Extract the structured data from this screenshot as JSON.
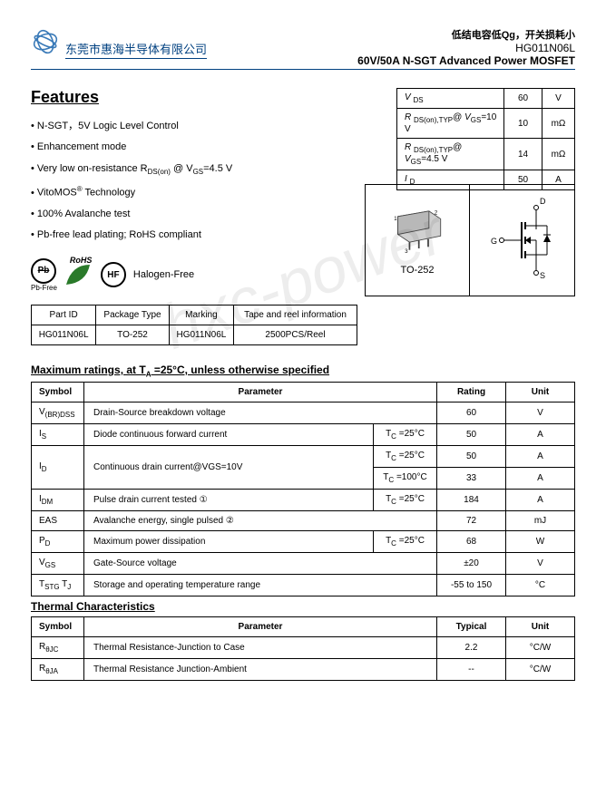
{
  "header": {
    "company": "东莞市惠海半导体有限公司",
    "tagline": "低结电容低Qg，开关损耗小",
    "part_no": "HG011N06L",
    "subtitle": "60V/50A N-SGT Advanced Power MOSFET"
  },
  "features": {
    "title": "Features",
    "items": [
      "N-SGT，5V Logic Level Control",
      "Enhancement mode",
      "Very low on-resistance R<sub>DS(on)</sub> @ V<sub>GS</sub>=4.5 V",
      "VitoMOS<sup>®</sup> Technology",
      "100% Avalanche test",
      "Pb-free lead plating; RoHS compliant"
    ]
  },
  "spec_table": {
    "rows": [
      {
        "param": "<i>V</i> <sub>DS</sub>",
        "val": "60",
        "unit": "V"
      },
      {
        "param": "<i>R</i> <sub>DS(on),TYP</sub>@ <i>V</i><sub>GS</sub>=10 V",
        "val": "10",
        "unit": "mΩ"
      },
      {
        "param": "<i>R</i> <sub>DS(on),TYP</sub>@ <i>V</i><sub>GS</sub>=4.5 V",
        "val": "14",
        "unit": "mΩ"
      },
      {
        "param": "<i>I</i> <sub>D</sub>",
        "val": "50",
        "unit": "A"
      }
    ]
  },
  "package_diagram": {
    "label": "TO-252"
  },
  "badges": {
    "pbfree": "Pb-Free",
    "rohs": "RoHS",
    "hf": "HF",
    "halogen": "Halogen-Free"
  },
  "pkg_table": {
    "headers": [
      "Part ID",
      "Package Type",
      "Marking",
      "Tape and reel information"
    ],
    "row": [
      "HG011N06L",
      "TO-252",
      "HG011N06L",
      "2500PCS/Reel"
    ]
  },
  "max_ratings": {
    "title": "Maximum ratings, at T<sub>A</sub> =25°C, unless otherwise specified",
    "headers": [
      "Symbol",
      "Parameter",
      "Rating",
      "Unit"
    ],
    "rows": [
      {
        "sym": "V<sub>(BR)DSS</sub>",
        "param": "Drain-Source breakdown voltage",
        "cond": "",
        "rating": "60",
        "unit": "V",
        "span": 2
      },
      {
        "sym": "I<sub>S</sub>",
        "param": "Diode continuous forward current",
        "cond": "T<sub>C</sub> =25°C",
        "rating": "50",
        "unit": "A",
        "span": 1
      },
      {
        "sym": "I<sub>D</sub>",
        "param": "Continuous drain current@VGS=10V",
        "cond": "T<sub>C</sub> =25°C",
        "rating": "50",
        "unit": "A",
        "span": 1,
        "rowspan": 2
      },
      {
        "cond": "T<sub>C</sub> =100°C",
        "rating": "33",
        "unit": "A"
      },
      {
        "sym": "I<sub>DM</sub>",
        "param": "Pulse drain current tested ①",
        "cond": "T<sub>C</sub> =25°C",
        "rating": "184",
        "unit": "A",
        "span": 1
      },
      {
        "sym": "EAS",
        "param": "Avalanche energy, single pulsed ②",
        "cond": "",
        "rating": "72",
        "unit": "mJ",
        "span": 2
      },
      {
        "sym": "P<sub>D</sub>",
        "param": "Maximum power dissipation",
        "cond": "T<sub>C</sub> =25°C",
        "rating": "68",
        "unit": "W",
        "span": 1
      },
      {
        "sym": "V<sub>GS</sub>",
        "param": "Gate-Source voltage",
        "cond": "",
        "rating": "±20",
        "unit": "V",
        "span": 2
      },
      {
        "sym": "T<sub>STG</sub> T<sub>J</sub>",
        "param": "Storage and operating temperature range",
        "cond": "",
        "rating": "-55 to 150",
        "unit": "°C",
        "span": 2
      }
    ]
  },
  "thermal": {
    "title": "Thermal Characteristics",
    "headers": [
      "Symbol",
      "Parameter",
      "Typical",
      "Unit"
    ],
    "rows": [
      {
        "sym": "R<sub>θJC</sub>",
        "param": "Thermal Resistance-Junction to Case",
        "typ": "2.2",
        "unit": "°C/W"
      },
      {
        "sym": "R<sub>θJA</sub>",
        "param": "Thermal Resistance Junction-Ambient",
        "typ": "--",
        "unit": "°C/W"
      }
    ]
  }
}
